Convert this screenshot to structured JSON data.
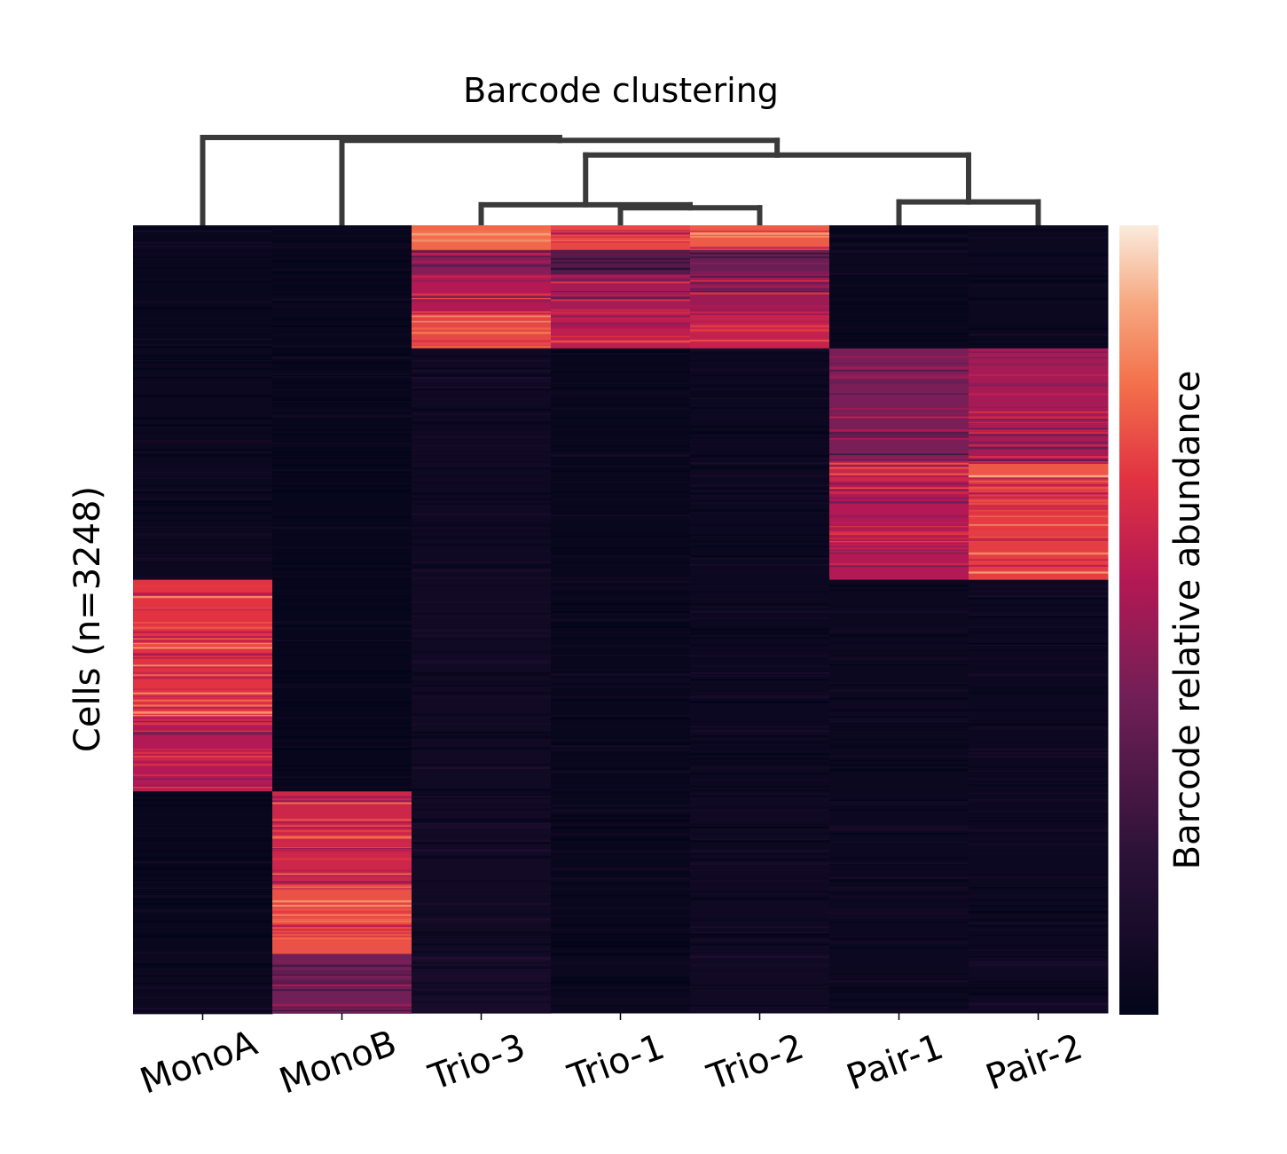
{
  "chart_data": {
    "type": "heatmap",
    "title": "Barcode clustering",
    "xlabel": "",
    "ylabel": "Cells (n=3248)",
    "colorbar_label": "Barcode relative abundance",
    "colorbar_ticks": [],
    "colormap": "rocket",
    "colors": {
      "low": "#03051a",
      "mid_low": "#4c1d4b",
      "mid": "#cb1b4f",
      "mid_high": "#f06043",
      "high": "#faebdd",
      "dendrogram": "#3a3a3a"
    },
    "value_range": [
      0,
      1
    ],
    "columns": [
      "MonoA",
      "MonoB",
      "Trio-3",
      "Trio-1",
      "Trio-2",
      "Pair-1",
      "Pair-2"
    ],
    "row_order_n_cells": 3248,
    "row_blocks": [
      {
        "rows": [
          0,
          50
        ],
        "values": [
          0.03,
          0.03,
          0.78,
          0.72,
          0.76,
          0.03,
          0.04
        ]
      },
      {
        "rows": [
          50,
          100
        ],
        "values": [
          0.03,
          0.03,
          0.45,
          0.32,
          0.38,
          0.04,
          0.05
        ]
      },
      {
        "rows": [
          100,
          175
        ],
        "values": [
          0.03,
          0.03,
          0.55,
          0.52,
          0.5,
          0.03,
          0.04
        ]
      },
      {
        "rows": [
          175,
          250
        ],
        "values": [
          0.03,
          0.03,
          0.72,
          0.58,
          0.6,
          0.03,
          0.04
        ]
      },
      {
        "rows": [
          250,
          480
        ],
        "values": [
          0.04,
          0.02,
          0.06,
          0.03,
          0.05,
          0.42,
          0.52
        ]
      },
      {
        "rows": [
          480,
          520
        ],
        "values": [
          0.04,
          0.02,
          0.06,
          0.03,
          0.05,
          0.62,
          0.75
        ]
      },
      {
        "rows": [
          520,
          720
        ],
        "values": [
          0.04,
          0.02,
          0.06,
          0.03,
          0.05,
          0.55,
          0.7
        ]
      },
      {
        "rows": [
          720,
          1000
        ],
        "values": [
          0.68,
          0.02,
          0.07,
          0.03,
          0.05,
          0.04,
          0.05
        ]
      },
      {
        "rows": [
          1000,
          1150
        ],
        "values": [
          0.55,
          0.02,
          0.07,
          0.03,
          0.05,
          0.04,
          0.05
        ]
      },
      {
        "rows": [
          1150,
          1340
        ],
        "values": [
          0.03,
          0.62,
          0.08,
          0.03,
          0.06,
          0.05,
          0.05
        ]
      },
      {
        "rows": [
          1340,
          1480
        ],
        "values": [
          0.03,
          0.74,
          0.07,
          0.03,
          0.06,
          0.05,
          0.05
        ]
      },
      {
        "rows": [
          1480,
          1600
        ],
        "values": [
          0.04,
          0.4,
          0.1,
          0.04,
          0.07,
          0.05,
          0.06
        ]
      }
    ],
    "dendrogram_links": [
      {
        "left": "Trio-1",
        "right": "Trio-2",
        "height": 0.12
      },
      {
        "left": "Trio-3",
        "right": "Trio-1+Trio-2",
        "height": 0.14
      },
      {
        "left": "Pair-1",
        "right": "Pair-2",
        "height": 0.16
      },
      {
        "left": "Trio cluster",
        "right": "Pair cluster",
        "height": 0.48
      },
      {
        "left": "MonoB",
        "right": "Trio+Pair cluster",
        "height": 0.58
      },
      {
        "left": "MonoA",
        "right": "MonoB+rest",
        "height": 0.6
      }
    ]
  }
}
